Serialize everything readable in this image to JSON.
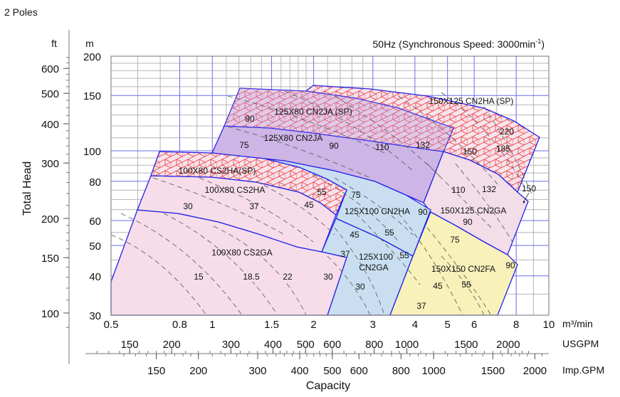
{
  "header": {
    "poles": "2 Poles",
    "speed_title": "50Hz (Synchronous Speed: 3000min",
    "speed_sup": "-1",
    "speed_close": ")"
  },
  "chart_data": {
    "type": "area",
    "title": "50Hz (Synchronous Speed: 3000min-1)",
    "xlabel": "Capacity",
    "ylabel": "Total Head",
    "x_unit": "m³/min",
    "y_unit_m": "m",
    "y_unit_ft": "ft",
    "usgpm_unit": "USGPM",
    "impgpm_unit": "Imp.GPM",
    "x_scale": "log",
    "y_scale": "log",
    "xlim": [
      0.5,
      10
    ],
    "ylim": [
      30,
      200
    ],
    "grid": true,
    "x_ticks": [
      "0.5",
      "0.8",
      "1",
      "1.5",
      "2",
      "3",
      "4",
      "5",
      "6",
      "8",
      "10"
    ],
    "y_ticks_m": [
      "200",
      "150",
      "100",
      "80",
      "60",
      "50",
      "40",
      "30"
    ],
    "y_ticks_ft": [
      "600",
      "500",
      "400",
      "300",
      "200",
      "150",
      "100"
    ],
    "usgpm_ticks": [
      "150",
      "200",
      "300",
      "400",
      "500",
      "600",
      "800",
      "1000",
      "1500",
      "2000"
    ],
    "impgpm_ticks": [
      "150",
      "200",
      "300",
      "400",
      "500",
      "600",
      "800",
      "1000",
      "1500",
      "2000"
    ],
    "regions": [
      {
        "model": "100X80 CS2HA(SP)",
        "hatched": true,
        "color": "#f6dde9",
        "motor_kw": [
          "55"
        ]
      },
      {
        "model": "100X80 CS2HA",
        "hatched": false,
        "color": "#f6dde9",
        "motor_kw": [
          "30",
          "37",
          "45"
        ]
      },
      {
        "model": "100X80 CS2GA",
        "hatched": false,
        "color": "#f6dde9",
        "motor_kw": [
          "15",
          "18.5",
          "22",
          "30"
        ]
      },
      {
        "model": "125X80 CN2JA (SP)",
        "hatched": true,
        "color": "#cdb5e6",
        "motor_kw": [
          "90"
        ]
      },
      {
        "model": "125X80 CN2JA",
        "hatched": false,
        "color": "#cdb5e6",
        "motor_kw": [
          "75",
          "90",
          "110",
          "132"
        ]
      },
      {
        "model": "150X125 CN2HA (SP)",
        "hatched": true,
        "color": "#f6dde9",
        "motor_kw": [
          "150",
          "185",
          "220"
        ]
      },
      {
        "model": "150X125 CN2GA",
        "hatched": false,
        "color": "#f2dde8",
        "motor_kw": [
          "110",
          "132",
          "150",
          "90"
        ]
      },
      {
        "model": "125X100 CN2HA",
        "hatched": false,
        "color": "#c9dff1",
        "motor_kw": [
          "75",
          "90"
        ]
      },
      {
        "model": "125X100 CN2GA",
        "model_lines": [
          "125X100",
          "CN2GA"
        ],
        "hatched": false,
        "color": "#c9dff1",
        "motor_kw": [
          "45",
          "55",
          "37",
          "55",
          "30"
        ]
      },
      {
        "model": "150X150 CN2FA",
        "hatched": false,
        "color": "#f8f1b9",
        "motor_kw": [
          "75",
          "90",
          "45",
          "55",
          "37"
        ]
      }
    ],
    "colors": {
      "boundary": "#2323e6",
      "major_grid": "#6b6bf0",
      "minor_grid": "#b4b4b4",
      "hatch": "#ee3b3b"
    }
  }
}
